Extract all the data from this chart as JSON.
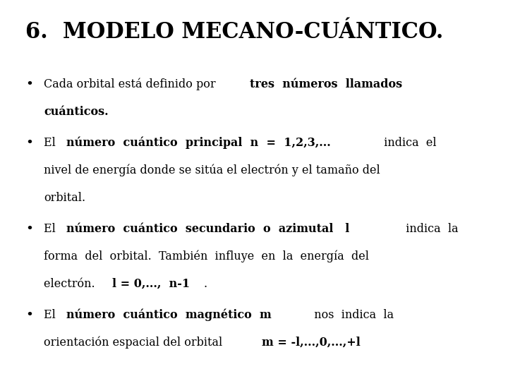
{
  "title": "6.  MODELO MECANO-CUÁNTICO.",
  "background_color": "#ffffff",
  "text_color": "#000000",
  "title_fontsize": 22,
  "body_fontsize": 11.5,
  "font_family": "DejaVu Serif",
  "bullets": [
    {
      "lines": [
        [
          {
            "text": "Cada orbital está definido por ",
            "bold": false
          },
          {
            "text": "tres  números  llamados",
            "bold": true
          }
        ],
        [
          {
            "text": "cuánticos.",
            "bold": true
          }
        ]
      ]
    },
    {
      "lines": [
        [
          {
            "text": "El  ",
            "bold": false
          },
          {
            "text": "número  cuántico  principal  n  =  1,2,3,...",
            "bold": true
          },
          {
            "text": "  indica  el",
            "bold": false
          }
        ],
        [
          {
            "text": "nivel de energía donde se sitúa el electrón y el tamaño del",
            "bold": false
          }
        ],
        [
          {
            "text": "orbital.",
            "bold": false
          }
        ]
      ]
    },
    {
      "lines": [
        [
          {
            "text": "El  ",
            "bold": false
          },
          {
            "text": "número  cuántico  secundario  o  azimutal   l",
            "bold": true
          },
          {
            "text": "  indica  la",
            "bold": false
          }
        ],
        [
          {
            "text": "forma  del  orbital.  También  influye  en  la  energía  del",
            "bold": false
          }
        ],
        [
          {
            "text": "electrón.  ",
            "bold": false
          },
          {
            "text": "l = 0,...,  n-1",
            "bold": true
          },
          {
            "text": ".",
            "bold": false
          }
        ]
      ]
    },
    {
      "lines": [
        [
          {
            "text": "El  ",
            "bold": false
          },
          {
            "text": "número  cuántico  magnético  m",
            "bold": true
          },
          {
            "text": "  nos  indica  la",
            "bold": false
          }
        ],
        [
          {
            "text": "orientación espacial del orbital  ",
            "bold": false
          },
          {
            "text": "m = -l,...,0,...,+l",
            "bold": true
          }
        ]
      ]
    }
  ]
}
